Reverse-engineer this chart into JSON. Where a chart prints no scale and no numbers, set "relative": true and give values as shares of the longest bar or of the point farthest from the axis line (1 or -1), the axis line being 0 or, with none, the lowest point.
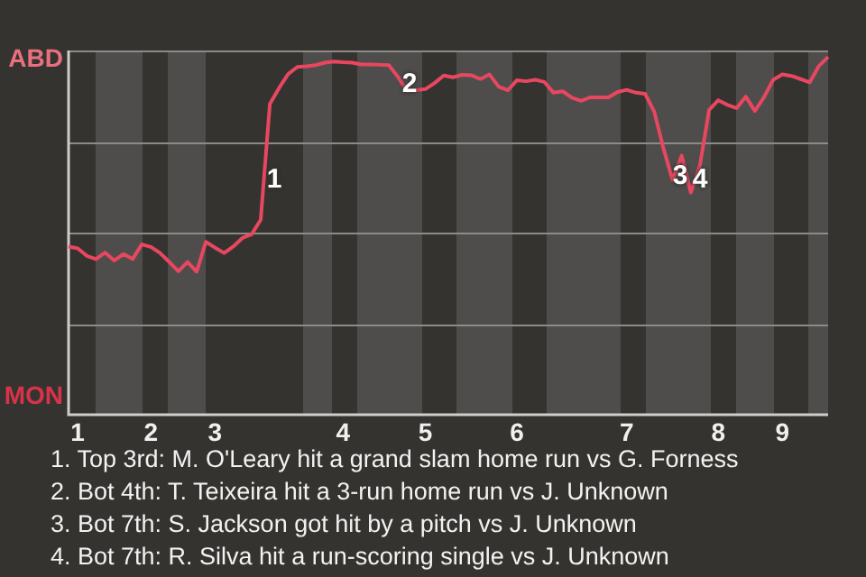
{
  "chart_data": {
    "type": "line",
    "relative": true,
    "categories": [
      null,
      "1",
      null,
      null,
      null,
      null,
      null,
      null,
      null,
      "2",
      null,
      null,
      null,
      null,
      null,
      null,
      "3",
      null,
      null,
      null,
      null,
      null,
      null,
      null,
      null,
      null,
      null,
      null,
      null,
      null,
      "4",
      null,
      null,
      null,
      null,
      null,
      null,
      null,
      null,
      "5",
      null,
      null,
      null,
      null,
      null,
      null,
      null,
      null,
      null,
      "6",
      null,
      null,
      null,
      null,
      null,
      null,
      null,
      null,
      null,
      null,
      null,
      "7",
      null,
      null,
      null,
      null,
      null,
      null,
      null,
      null,
      null,
      "8",
      null,
      null,
      null,
      null,
      null,
      null,
      "9",
      null,
      null,
      null,
      null,
      null
    ],
    "series": [
      {
        "color": "#e8475f",
        "values": [
          0.47,
          0.465,
          0.444,
          0.435,
          0.453,
          0.431,
          0.449,
          0.435,
          0.476,
          0.469,
          0.452,
          0.427,
          0.401,
          0.427,
          0.4,
          0.483,
          0.467,
          0.452,
          0.47,
          0.494,
          0.504,
          0.545,
          0.869,
          0.913,
          0.952,
          0.972,
          0.974,
          0.977,
          0.984,
          0.987,
          0.985,
          0.984,
          0.979,
          0.979,
          0.978,
          0.977,
          0.944,
          0.905,
          0.907,
          0.91,
          0.927,
          0.948,
          0.943,
          0.95,
          0.949,
          0.938,
          0.951,
          0.917,
          0.907,
          0.935,
          0.932,
          0.936,
          0.93,
          0.9,
          0.904,
          0.886,
          0.877,
          0.887,
          0.887,
          0.887,
          0.902,
          0.908,
          0.9,
          0.897,
          0.847,
          0.745,
          0.656,
          0.724,
          0.621,
          0.698,
          0.852,
          0.879,
          0.866,
          0.857,
          0.889,
          0.849,
          0.888,
          0.936,
          0.951,
          0.947,
          0.938,
          0.929,
          0.975,
          1
        ]
      }
    ],
    "grid": "y",
    "marker": "none",
    "line_style": "solid",
    "legend": false,
    "annotations": [
      "ABD",
      "MON",
      "1",
      "2",
      "3",
      "4",
      "1. Top 3rd: M. O'Leary hit a grand slam home run vs G. Forness",
      "2. Bot 4th: T. Teixeira hit a 3-run home run vs J. Unknown",
      "3. Bot 7th: S. Jackson got hit by a pitch vs J. Unknown",
      "4. Bot 7th: R. Silva hit a run-scoring single vs J. Unknown"
    ]
  }
}
